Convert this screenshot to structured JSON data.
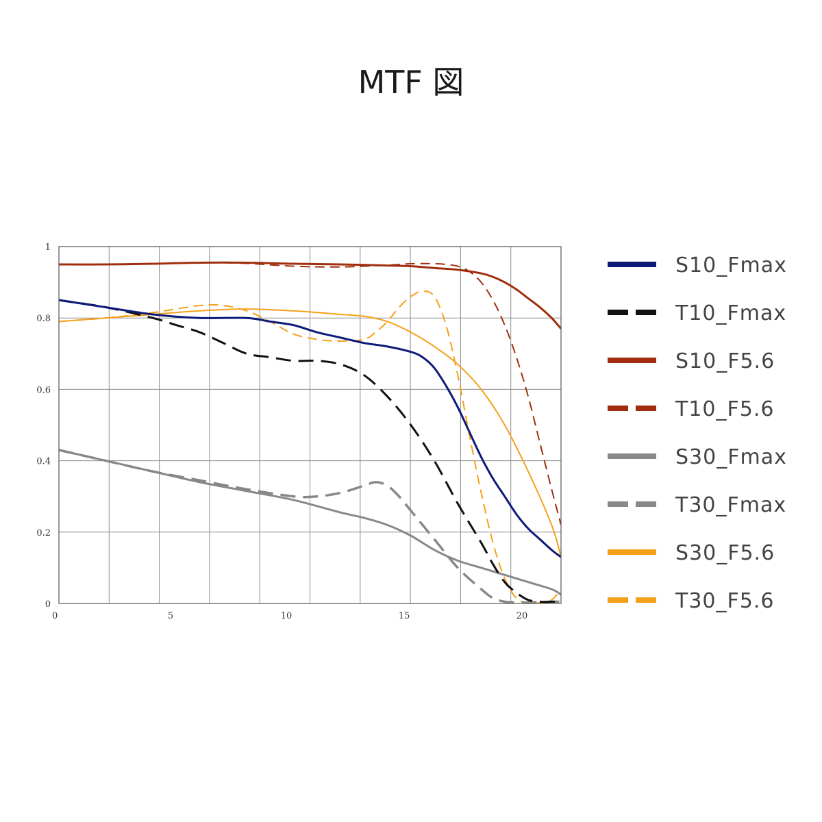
{
  "title": "MTF 図",
  "chart_data": {
    "type": "line",
    "title": "MTF 図",
    "xlim": [
      0,
      21.4
    ],
    "ylim": [
      0,
      1
    ],
    "x_tick_labels": [
      "0",
      "5",
      "10",
      "15",
      "20"
    ],
    "y_tick_labels": [
      "0",
      "0.2",
      "0.4",
      "0.6",
      "0.8",
      "1"
    ],
    "grid": true,
    "legend_position": "right",
    "series": [
      {
        "name": "S10_Fmax",
        "color": "#0d1a78",
        "dash": false,
        "width": 3,
        "x": [
          0,
          2,
          4,
          6,
          8,
          9,
          10,
          11,
          12,
          13,
          14,
          15,
          15.5,
          16,
          16.5,
          17,
          17.5,
          18,
          18.5,
          19,
          19.5,
          20,
          20.5,
          21,
          21.4
        ],
        "y": [
          0.85,
          0.83,
          0.81,
          0.8,
          0.8,
          0.79,
          0.78,
          0.76,
          0.745,
          0.73,
          0.72,
          0.705,
          0.69,
          0.66,
          0.61,
          0.55,
          0.48,
          0.41,
          0.35,
          0.3,
          0.25,
          0.21,
          0.18,
          0.15,
          0.13
        ]
      },
      {
        "name": "T10_Fmax",
        "color": "#111111",
        "dash": true,
        "width": 3,
        "x": [
          0,
          2,
          4,
          5,
          6,
          7,
          8,
          9,
          10,
          11,
          12,
          13,
          14,
          15,
          16,
          17,
          18,
          18.5,
          19,
          19.5,
          20,
          20.5,
          21,
          21.4
        ],
        "y": [
          0.85,
          0.83,
          0.8,
          0.78,
          0.76,
          0.73,
          0.7,
          0.69,
          0.68,
          0.68,
          0.67,
          0.64,
          0.58,
          0.5,
          0.4,
          0.28,
          0.17,
          0.11,
          0.06,
          0.03,
          0.01,
          0.005,
          0.005,
          0.005
        ]
      },
      {
        "name": "S10_F5.6",
        "color": "#a02e0e",
        "dash": false,
        "width": 3,
        "x": [
          0,
          2,
          4,
          6,
          8,
          10,
          12,
          14,
          15,
          16,
          17,
          18,
          18.5,
          19,
          19.5,
          20,
          20.5,
          21,
          21.4
        ],
        "y": [
          0.95,
          0.95,
          0.952,
          0.955,
          0.955,
          0.952,
          0.95,
          0.947,
          0.945,
          0.94,
          0.935,
          0.925,
          0.915,
          0.9,
          0.88,
          0.855,
          0.83,
          0.8,
          0.77
        ]
      },
      {
        "name": "T10_F5.6",
        "color": "#a02e0e",
        "dash": true,
        "width": 2,
        "x": [
          0,
          2,
          4,
          6,
          8,
          10,
          12,
          14,
          15,
          16,
          16.5,
          17,
          17.5,
          18,
          18.5,
          19,
          19.5,
          20,
          20.5,
          21,
          21.4
        ],
        "y": [
          0.95,
          0.95,
          0.952,
          0.955,
          0.953,
          0.945,
          0.943,
          0.948,
          0.952,
          0.952,
          0.95,
          0.945,
          0.93,
          0.9,
          0.85,
          0.78,
          0.69,
          0.58,
          0.45,
          0.32,
          0.22
        ]
      },
      {
        "name": "S30_Fmax",
        "color": "#888888",
        "dash": false,
        "width": 3,
        "x": [
          0,
          2,
          4,
          6,
          8,
          10,
          12,
          13,
          14,
          15,
          16,
          17,
          18,
          19,
          20,
          21,
          21.4
        ],
        "y": [
          0.43,
          0.4,
          0.37,
          0.34,
          0.315,
          0.29,
          0.255,
          0.24,
          0.22,
          0.19,
          0.15,
          0.12,
          0.1,
          0.08,
          0.06,
          0.04,
          0.025
        ]
      },
      {
        "name": "T30_Fmax",
        "color": "#888888",
        "dash": true,
        "width": 3.5,
        "x": [
          0,
          2,
          4,
          6,
          8,
          10,
          11,
          12,
          13,
          13.5,
          14,
          14.5,
          15,
          16,
          17,
          18,
          18.5,
          19,
          19.5,
          20,
          21,
          21.4
        ],
        "y": [
          0.43,
          0.4,
          0.37,
          0.345,
          0.32,
          0.3,
          0.3,
          0.31,
          0.33,
          0.34,
          0.33,
          0.3,
          0.26,
          0.18,
          0.1,
          0.04,
          0.015,
          0.005,
          0.003,
          0.003,
          0.005,
          0.005
        ]
      },
      {
        "name": "S30_F5.6",
        "color": "#f5a01a",
        "dash": false,
        "width": 2,
        "x": [
          0,
          2,
          4,
          6,
          8,
          10,
          12,
          13,
          14,
          15,
          16,
          17,
          18,
          19,
          20,
          21,
          21.4
        ],
        "y": [
          0.79,
          0.8,
          0.81,
          0.82,
          0.825,
          0.82,
          0.81,
          0.805,
          0.79,
          0.76,
          0.72,
          0.67,
          0.6,
          0.5,
          0.37,
          0.22,
          0.13
        ]
      },
      {
        "name": "T30_F5.6",
        "color": "#f5a01a",
        "dash": true,
        "width": 2,
        "x": [
          0,
          2,
          4,
          6,
          7,
          8,
          9,
          10,
          11,
          12,
          13,
          13.5,
          14,
          14.5,
          15,
          15.5,
          16,
          16.5,
          17,
          17.5,
          18,
          18.5,
          19,
          19.5,
          20,
          20.5,
          21,
          21.4
        ],
        "y": [
          0.79,
          0.8,
          0.815,
          0.835,
          0.835,
          0.82,
          0.79,
          0.755,
          0.74,
          0.735,
          0.74,
          0.76,
          0.79,
          0.83,
          0.86,
          0.875,
          0.86,
          0.78,
          0.64,
          0.47,
          0.31,
          0.17,
          0.07,
          0.015,
          0.002,
          0.002,
          0.01,
          0.04
        ]
      }
    ]
  }
}
